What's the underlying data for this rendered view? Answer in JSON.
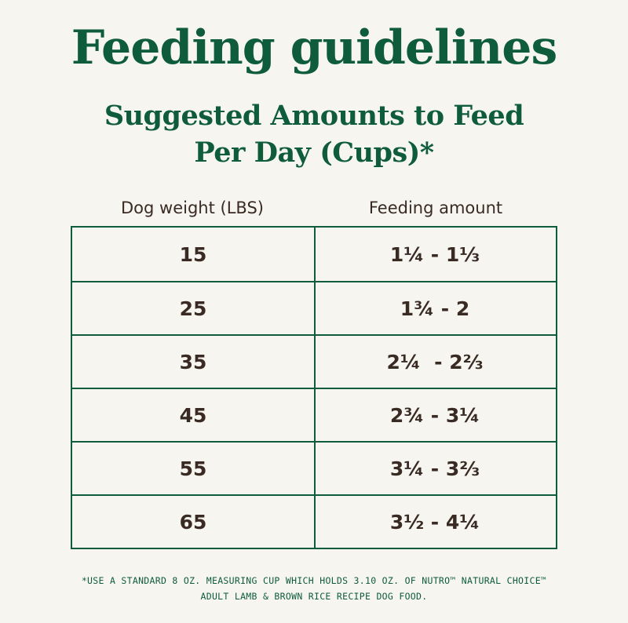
{
  "title": "Feeding guidelines",
  "subtitle": {
    "line1": "Suggested Amounts to Feed",
    "line2": "Per Day (Cups)*"
  },
  "table": {
    "headers": {
      "weight": "Dog weight (LBS)",
      "amount": "Feeding amount"
    },
    "rows": [
      {
        "weight": "15",
        "amount": "1¼ - 1⅓"
      },
      {
        "weight": "25",
        "amount": "1¾ - 2"
      },
      {
        "weight": "35",
        "amount": "2¼  - 2⅔"
      },
      {
        "weight": "45",
        "amount": "2¾ - 3¼"
      },
      {
        "weight": "55",
        "amount": "3¼ - 3⅔"
      },
      {
        "weight": "65",
        "amount": "3½ - 4¼"
      }
    ]
  },
  "footnote": {
    "line1": "*USE A STANDARD 8 OZ. MEASURING CUP WHICH HOLDS 3.10 OZ. OF NUTRO™ NATURAL CHOICE™",
    "line2": "ADULT LAMB & BROWN RICE RECIPE DOG FOOD."
  }
}
